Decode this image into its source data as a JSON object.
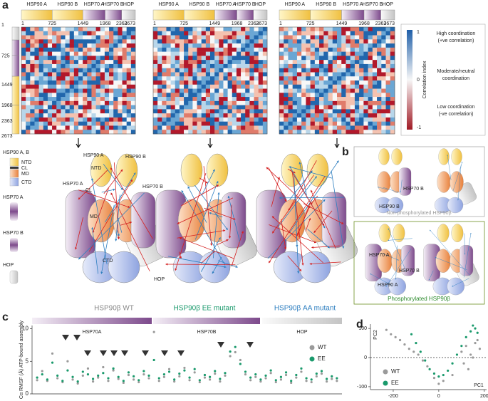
{
  "panel_a": {
    "label": "a",
    "segments": [
      "HSP90 A",
      "HSP90 B",
      "HSP70 A",
      "HSP70 B",
      "HOP"
    ],
    "residues_top": [
      "1",
      "725",
      "1449",
      "1968",
      "2363",
      "2673"
    ],
    "residues_left": [
      "2673",
      "2363",
      "1968",
      "1449",
      "725",
      "1"
    ],
    "colorbar": {
      "max": "1",
      "mid": "0",
      "min": "-1",
      "title": "Correlation index",
      "high": [
        "High coordination",
        "(+ve correlation)"
      ],
      "moderate": [
        "Moderate/neutral",
        "coordination"
      ],
      "low": [
        "Low coordination",
        "(-ve correlation)"
      ]
    },
    "legend": {
      "hsp90": "HSP90 A, B",
      "domains": [
        "NTD",
        "CL",
        "MD",
        "CTD"
      ],
      "hsp70a": "HSP70 A",
      "hsp70b": "HSP70 B",
      "hop": "HOP"
    },
    "diagram_labels": {
      "hsp90a": "HSP90 A",
      "hsp90b": "HSP90 B",
      "ntd": "NTD",
      "hsp70a": "HSP70 A",
      "cl": "CL",
      "md": "MD",
      "hsp70b": "HSP70 B",
      "ctd": "CTD",
      "hop": "HOP"
    },
    "captions": [
      "HSP90β WT",
      "HSP90β EE mutant",
      "HSP90β AA mutant"
    ]
  },
  "panel_b": {
    "label": "b",
    "top": {
      "hsp70b": "HSP70 B",
      "hsp90b": "HSP90 B",
      "caption": "Non-phosphorylated HSP90β"
    },
    "bottom": {
      "hsp70a": "HSP70 A",
      "hsp70b": "HSP70 B",
      "hsp90a": "HSP90 A",
      "caption": "Phosphorylated HSP90β"
    }
  },
  "panel_c_label": "c",
  "panel_d_label": "d",
  "chart_data": [
    {
      "type": "scatter",
      "ylabel": "Cα RMSF (Å) ATP-bound assembly",
      "segments": [
        "HSP70A",
        "HSP70B",
        "HOP"
      ],
      "xlim": [
        0,
        61
      ],
      "ylim": [
        0,
        10.5
      ],
      "yticks": [
        0,
        5,
        10
      ],
      "x": [
        1,
        2,
        3,
        4,
        5,
        6,
        7,
        8,
        9,
        10,
        11,
        12,
        13,
        14,
        15,
        16,
        17,
        18,
        19,
        20,
        21,
        22,
        23,
        24,
        25,
        26,
        27,
        28,
        29,
        30,
        31,
        32,
        33,
        34,
        35,
        36,
        37,
        38,
        39,
        40,
        41,
        42,
        43,
        44,
        45,
        46,
        47,
        48,
        49,
        50,
        51,
        52,
        53,
        54,
        55,
        56,
        57,
        58,
        59,
        60
      ],
      "series": [
        {
          "name": "WT",
          "color": "#9a9a9a",
          "values": [
            2.1,
            3.5,
            2.0,
            6.2,
            2.4,
            1.8,
            5.0,
            2.2,
            1.6,
            2.8,
            3.9,
            1.9,
            2.5,
            4.1,
            2.0,
            3.6,
            2.3,
            1.7,
            2.9,
            2.2,
            1.8,
            3.0,
            2.4,
            9.5,
            2.0,
            2.6,
            3.8,
            1.9,
            2.7,
            4.0,
            2.1,
            3.3,
            1.8,
            2.5,
            2.2,
            3.1,
            1.9,
            2.8,
            5.8,
            6.4,
            5.2,
            3.0,
            2.1,
            2.6,
            1.9,
            2.4,
            3.2,
            1.8,
            2.2,
            2.9,
            1.7,
            2.5,
            3.4,
            2.0,
            1.8,
            2.7,
            3.1,
            1.9,
            2.3,
            2.0
          ]
        },
        {
          "name": "EE",
          "color": "#1a9a6c",
          "values": [
            2.5,
            3.0,
            2.2,
            4.8,
            2.8,
            2.0,
            3.6,
            2.6,
            1.9,
            3.4,
            3.0,
            2.3,
            2.8,
            3.2,
            2.4,
            3.9,
            2.6,
            2.0,
            3.3,
            2.7,
            2.1,
            3.5,
            2.8,
            5.2,
            2.4,
            3.0,
            3.4,
            2.2,
            3.1,
            3.6,
            2.5,
            3.8,
            2.1,
            2.9,
            2.6,
            3.5,
            2.3,
            3.2,
            6.5,
            7.2,
            4.6,
            3.4,
            2.5,
            3.0,
            2.2,
            2.8,
            3.6,
            2.1,
            2.6,
            3.3,
            2.0,
            2.9,
            3.9,
            2.4,
            2.2,
            3.1,
            3.5,
            2.3,
            2.7,
            2.4
          ]
        }
      ]
    },
    {
      "type": "scatter",
      "xlabel": "PC1",
      "ylabel": "PC2",
      "xlim": [
        -300,
        210
      ],
      "ylim": [
        -110,
        115
      ],
      "xticks": [
        -200,
        0,
        200
      ],
      "yticks": [
        -100,
        0,
        100
      ],
      "series": [
        {
          "name": "WT",
          "color": "#9a9a9a",
          "x": [
            -230,
            -210,
            -190,
            -170,
            -150,
            -130,
            -110,
            -90,
            -70,
            -50,
            100,
            120,
            140,
            160,
            180,
            110,
            150,
            170,
            130,
            60,
            20,
            0,
            -20
          ],
          "values": [
            95,
            80,
            70,
            60,
            45,
            30,
            20,
            10,
            -10,
            -30,
            20,
            40,
            10,
            50,
            30,
            -20,
            0,
            60,
            -40,
            -60,
            -80,
            -90,
            -70
          ]
        },
        {
          "name": "EE",
          "color": "#1a9a6c",
          "x": [
            -120,
            -100,
            -80,
            -60,
            -40,
            -20,
            0,
            20,
            40,
            60,
            80,
            100,
            120,
            140,
            150,
            160,
            170
          ],
          "values": [
            80,
            50,
            20,
            -10,
            -40,
            -55,
            -65,
            -60,
            -45,
            -20,
            10,
            40,
            70,
            90,
            110,
            100,
            85
          ]
        }
      ]
    }
  ]
}
